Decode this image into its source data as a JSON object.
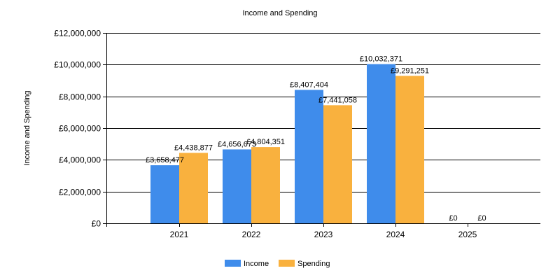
{
  "chart_data": {
    "type": "bar",
    "title": "Income and Spending",
    "ylabel": "Income and Spending",
    "xlabel": "",
    "categories": [
      "2021",
      "2022",
      "2023",
      "2024",
      "2025"
    ],
    "series": [
      {
        "name": "Income",
        "color": "#3f8ceb",
        "values": [
          3658477,
          4656673,
          8407404,
          10032371,
          0
        ],
        "labels": [
          "£3,658,477",
          "£4,656,673",
          "£8,407,404",
          "£10,032,371",
          "£0"
        ]
      },
      {
        "name": "Spending",
        "color": "#f9b13e",
        "values": [
          4438877,
          4804351,
          7441058,
          9291251,
          0
        ],
        "labels": [
          "£4,438,877",
          "£4,804,351",
          "£7,441,058",
          "£9,291,251",
          "£0"
        ]
      }
    ],
    "ylim": [
      0,
      12000000
    ],
    "yticks": [
      0,
      2000000,
      4000000,
      6000000,
      8000000,
      10000000,
      12000000
    ],
    "ytick_labels": [
      "£0",
      "£2,000,000",
      "£4,000,000",
      "£6,000,000",
      "£8,000,000",
      "£10,000,000",
      "£12,000,000"
    ],
    "grid": true,
    "legend_position": "bottom-center"
  }
}
